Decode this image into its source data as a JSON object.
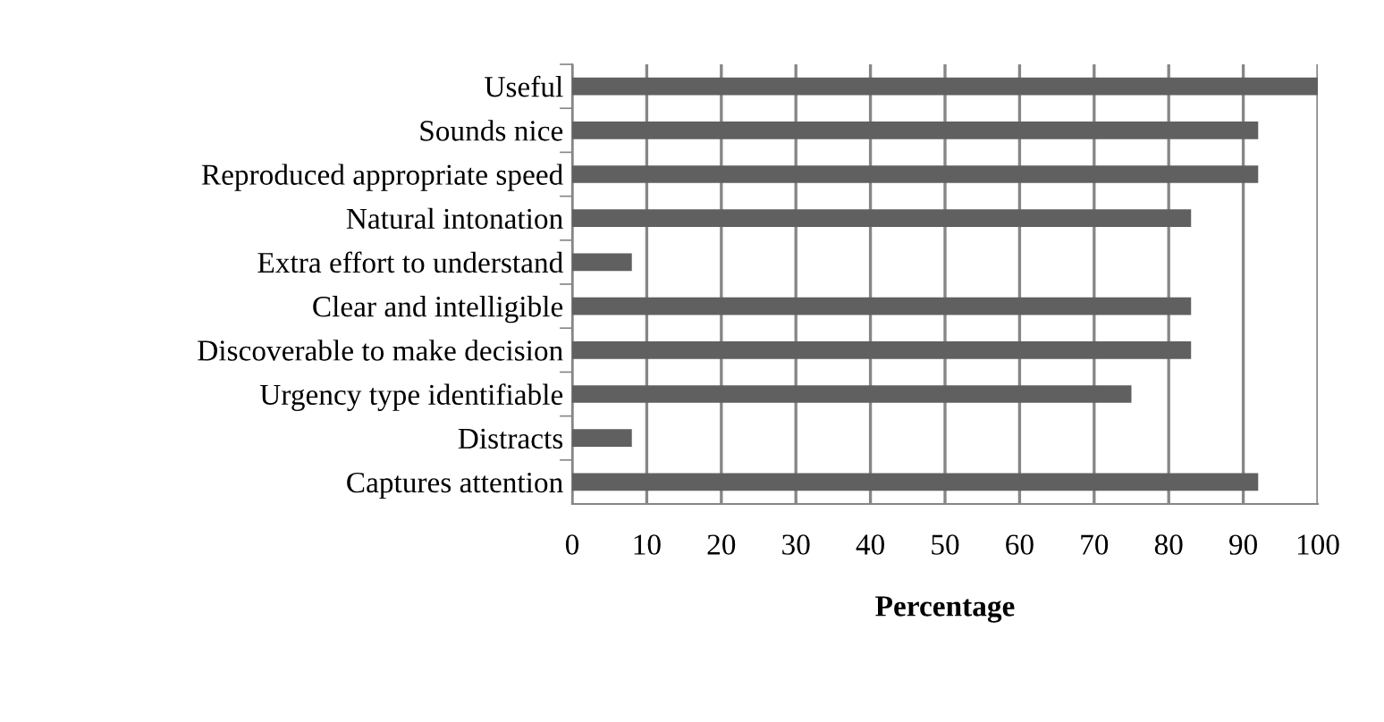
{
  "chart_data": {
    "type": "bar",
    "orientation": "horizontal",
    "xlabel": "Percentage",
    "categories": [
      "Useful",
      "Sounds nice",
      "Reproduced appropriate speed",
      "Natural intonation",
      "Extra effort to understand",
      "Clear and intelligible",
      "Discoverable to make decision",
      "Urgency type identifiable",
      "Distracts",
      "Captures attention"
    ],
    "values": [
      100,
      92,
      92,
      83,
      8,
      83,
      83,
      75,
      8,
      92
    ],
    "color": "#606060",
    "xlim": [
      0,
      100
    ],
    "xticks": [
      0,
      10,
      20,
      30,
      40,
      50,
      60,
      70,
      80,
      90,
      100
    ],
    "grid": "x",
    "legend": false
  }
}
